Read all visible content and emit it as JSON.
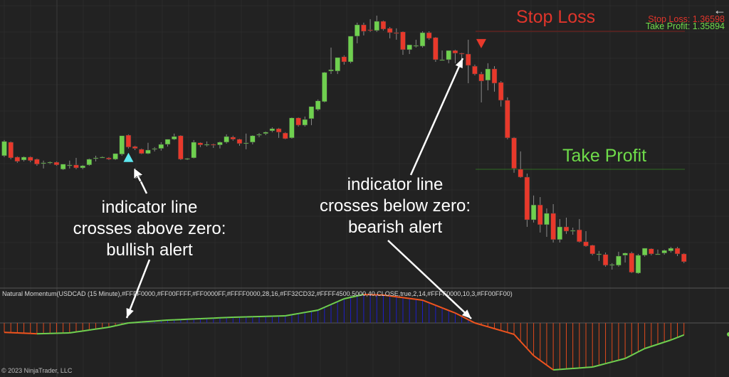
{
  "chart_data": {
    "type": "candlestick",
    "instrument": "USDCAD (15 Minute)",
    "colors": {
      "up": "#6fd04f",
      "down": "#e8392b",
      "background": "#222222",
      "stop_loss": "#e0352b",
      "take_profit": "#6fdc4a",
      "bull_signal": "#5ee8f0",
      "bear_signal": "#e8392b",
      "hist_above": "#1e1ec8",
      "hist_below": "#e04a1c",
      "line_up": "#6fd04f",
      "line_down": "#f0541e"
    },
    "ohlc": [
      [
        1.35963,
        1.36043,
        1.35956,
        1.36036
      ],
      [
        1.36032,
        1.36036,
        1.35945,
        1.35952
      ],
      [
        1.35956,
        1.3596,
        1.35927,
        1.35934
      ],
      [
        1.35941,
        1.3596,
        1.35934,
        1.35956
      ],
      [
        1.35956,
        1.3596,
        1.3593,
        1.35938
      ],
      [
        1.35945,
        1.35949,
        1.35912,
        1.3592
      ],
      [
        1.35923,
        1.35938,
        1.35898,
        1.35927
      ],
      [
        1.35927,
        1.35934,
        1.3592,
        1.3593
      ],
      [
        1.3593,
        1.35934,
        1.35912,
        1.35916
      ],
      [
        1.35894,
        1.3592,
        1.3589,
        1.3592
      ],
      [
        1.35916,
        1.35938,
        1.35898,
        1.35916
      ],
      [
        1.35916,
        1.35952,
        1.35894,
        1.35901
      ],
      [
        1.35901,
        1.35916,
        1.35894,
        1.35912
      ],
      [
        1.35916,
        1.35949,
        1.35912,
        1.35945
      ],
      [
        1.35952,
        1.35963,
        1.35934,
        1.35952
      ],
      [
        1.35956,
        1.3596,
        1.35952,
        1.35956
      ],
      [
        1.35952,
        1.35956,
        1.35941,
        1.35945
      ],
      [
        1.35945,
        1.35974,
        1.35941,
        1.35974
      ],
      [
        1.35971,
        1.36065,
        1.35963,
        1.36065
      ],
      [
        1.36068,
        1.36072,
        1.36,
        1.36007
      ],
      [
        1.3601,
        1.36014,
        1.35992,
        1.36
      ],
      [
        1.35996,
        1.36,
        1.35971,
        1.35974
      ],
      [
        1.35974,
        1.36029,
        1.35971,
        1.35992
      ],
      [
        1.35996,
        1.36007,
        1.35985,
        1.36
      ],
      [
        1.36,
        1.36032,
        1.35989,
        1.36021
      ],
      [
        1.36021,
        1.36047,
        1.3601,
        1.36047
      ],
      [
        1.36047,
        1.36076,
        1.36043,
        1.36061
      ],
      [
        1.36065,
        1.36068,
        1.35941,
        1.35945
      ],
      [
        1.35949,
        1.35952,
        1.35941,
        1.35949
      ],
      [
        1.35952,
        1.36043,
        1.35949,
        1.36032
      ],
      [
        1.36029,
        1.36032,
        1.36007,
        1.36018
      ],
      [
        1.36021,
        1.36036,
        1.3601,
        1.36021
      ],
      [
        1.36021,
        1.36025,
        1.36003,
        1.36018
      ],
      [
        1.36018,
        1.36036,
        1.36,
        1.36032
      ],
      [
        1.36032,
        1.36072,
        1.36025,
        1.36061
      ],
      [
        1.36058,
        1.36065,
        1.3604,
        1.36047
      ],
      [
        1.36047,
        1.3605,
        1.36014,
        1.36025
      ],
      [
        1.36029,
        1.36076,
        1.35996,
        1.36029
      ],
      [
        1.36032,
        1.36068,
        1.36021,
        1.36065
      ],
      [
        1.36068,
        1.36079,
        1.36058,
        1.36072
      ],
      [
        1.36076,
        1.36087,
        1.36068,
        1.36083
      ],
      [
        1.3609,
        1.36108,
        1.36083,
        1.36101
      ],
      [
        1.36101,
        1.36105,
        1.36054,
        1.36083
      ],
      [
        1.36079,
        1.36083,
        1.36047,
        1.3605
      ],
      [
        1.36054,
        1.36159,
        1.3605,
        1.36156
      ],
      [
        1.36156,
        1.36159,
        1.36112,
        1.36119
      ],
      [
        1.36119,
        1.36163,
        1.36112,
        1.36148
      ],
      [
        1.36152,
        1.36214,
        1.36119,
        1.36214
      ],
      [
        1.36199,
        1.3625,
        1.36192,
        1.36243
      ],
      [
        1.36239,
        1.36391,
        1.36235,
        1.36388
      ],
      [
        1.36395,
        1.36515,
        1.3638,
        1.36402
      ],
      [
        1.36395,
        1.36464,
        1.3638,
        1.36464
      ],
      [
        1.36468,
        1.36475,
        1.36428,
        1.36442
      ],
      [
        1.36442,
        1.36573,
        1.36435,
        1.36573
      ],
      [
        1.36573,
        1.36642,
        1.36537,
        1.36631
      ],
      [
        1.36631,
        1.36642,
        1.36577,
        1.36598
      ],
      [
        1.36606,
        1.3666,
        1.36595,
        1.36602
      ],
      [
        1.36602,
        1.36678,
        1.36595,
        1.36649
      ],
      [
        1.36649,
        1.36653,
        1.36602,
        1.36609
      ],
      [
        1.36613,
        1.3662,
        1.36562,
        1.36591
      ],
      [
        1.36591,
        1.36613,
        1.36555,
        1.36588
      ],
      [
        1.36595,
        1.36598,
        1.36478,
        1.36504
      ],
      [
        1.36504,
        1.36529,
        1.36482,
        1.36529
      ],
      [
        1.36526,
        1.36555,
        1.36515,
        1.36526
      ],
      [
        1.36522,
        1.36598,
        1.36515,
        1.36591
      ],
      [
        1.36591,
        1.36598,
        1.36555,
        1.36562
      ],
      [
        1.36566,
        1.36569,
        1.36442,
        1.36453
      ],
      [
        1.36453,
        1.365,
        1.36449,
        1.36453
      ],
      [
        1.36453,
        1.365,
        1.36435,
        1.365
      ],
      [
        1.365,
        1.36504,
        1.36435,
        1.36486
      ],
      [
        1.36486,
        1.36489,
        1.36442,
        1.36482
      ],
      [
        1.36482,
        1.36555,
        1.36333,
        1.36424
      ],
      [
        1.3642,
        1.36428,
        1.36373,
        1.3638
      ],
      [
        1.3638,
        1.36391,
        1.36235,
        1.36344
      ],
      [
        1.36348,
        1.36435,
        1.36297,
        1.36406
      ],
      [
        1.36406,
        1.3642,
        1.3629,
        1.36333
      ],
      [
        1.36337,
        1.36344,
        1.36214,
        1.36246
      ],
      [
        1.36246,
        1.36261,
        1.36047,
        1.36054
      ],
      [
        1.36054,
        1.36058,
        1.35876,
        1.35898
      ],
      [
        1.35894,
        1.35985,
        1.3585,
        1.35854
      ],
      [
        1.35854,
        1.35872,
        1.356,
        1.35636
      ],
      [
        1.35636,
        1.3576,
        1.35622,
        1.35712
      ],
      [
        1.35712,
        1.35752,
        1.35571,
        1.35611
      ],
      [
        1.35611,
        1.35694,
        1.35549,
        1.35669
      ],
      [
        1.35669,
        1.35716,
        1.3552,
        1.35535
      ],
      [
        1.35535,
        1.3564,
        1.3552,
        1.356
      ],
      [
        1.356,
        1.35647,
        1.35564,
        1.35578
      ],
      [
        1.35582,
        1.35596,
        1.3556,
        1.35582
      ],
      [
        1.35585,
        1.3564,
        1.3552,
        1.35524
      ],
      [
        1.35524,
        1.35578,
        1.35498,
        1.35502
      ],
      [
        1.35506,
        1.35509,
        1.35455,
        1.35462
      ],
      [
        1.35462,
        1.35477,
        1.35426,
        1.35462
      ],
      [
        1.35459,
        1.35469,
        1.35397,
        1.35404
      ],
      [
        1.35408,
        1.35415,
        1.35382,
        1.35408
      ],
      [
        1.35404,
        1.35473,
        1.35397,
        1.35451
      ],
      [
        1.35455,
        1.35469,
        1.35418,
        1.35466
      ],
      [
        1.35466,
        1.35473,
        1.35364,
        1.35368
      ],
      [
        1.35364,
        1.35462,
        1.3536,
        1.35455
      ],
      [
        1.35455,
        1.35491,
        1.35448,
        1.35491
      ],
      [
        1.35488,
        1.35491,
        1.35455,
        1.35462
      ],
      [
        1.35462,
        1.35484,
        1.35458,
        1.35462
      ],
      [
        1.35466,
        1.35484,
        1.35458,
        1.3548
      ],
      [
        1.35477,
        1.35498,
        1.35469,
        1.35491
      ],
      [
        1.35491,
        1.35498,
        1.35451,
        1.35462
      ],
      [
        1.35462,
        1.35466,
        1.35415,
        1.35422
      ]
    ],
    "stop_loss": 1.36598,
    "take_profit": 1.35894,
    "bull_signal_bar": 19,
    "bear_signal_bar": 72,
    "indicator": {
      "title": "Natural Momentum(USDCAD (15 Minute),#FFFF0000,#FF00FFFF,#FF0000FF,#FFFF0000,28,16,#FF32CD32,#FFFF4500,5000,40,CLOSE,true,2,14,#FFFF0000,10,3,#FF00FF00)",
      "zero": 0,
      "points": [
        [
          0,
          -0.33
        ],
        [
          5,
          -0.38
        ],
        [
          10,
          -0.35
        ],
        [
          16,
          -0.15
        ],
        [
          19,
          0.0
        ],
        [
          25,
          0.1
        ],
        [
          30,
          0.15
        ],
        [
          35,
          0.2
        ],
        [
          43,
          0.25
        ],
        [
          48,
          0.45
        ],
        [
          52,
          0.85
        ],
        [
          55,
          1.0
        ],
        [
          58,
          0.98
        ],
        [
          64,
          0.8
        ],
        [
          69,
          0.35
        ],
        [
          72,
          0.0
        ],
        [
          78,
          -0.4
        ],
        [
          81,
          -1.15
        ],
        [
          84,
          -1.65
        ],
        [
          90,
          -1.55
        ],
        [
          95,
          -1.25
        ],
        [
          98,
          -0.9
        ],
        [
          102,
          -0.6
        ],
        [
          104,
          -0.42
        ]
      ]
    }
  },
  "labels": {
    "stop_loss_title": "Stop Loss",
    "take_profit_title": "Take Profit",
    "stop_loss_readout": "Stop Loss: 1.36598",
    "take_profit_readout": "Take Profit: 1.35894",
    "bull_line1": "indicator line",
    "bull_line2": "crosses above zero:",
    "bull_line3": "bullish alert",
    "bear_line1": "indicator line",
    "bear_line2": "crosses below zero:",
    "bear_line3": "bearish alert",
    "copyright": "© 2023 NinjaTrader, LLC",
    "back_icon": "←"
  }
}
